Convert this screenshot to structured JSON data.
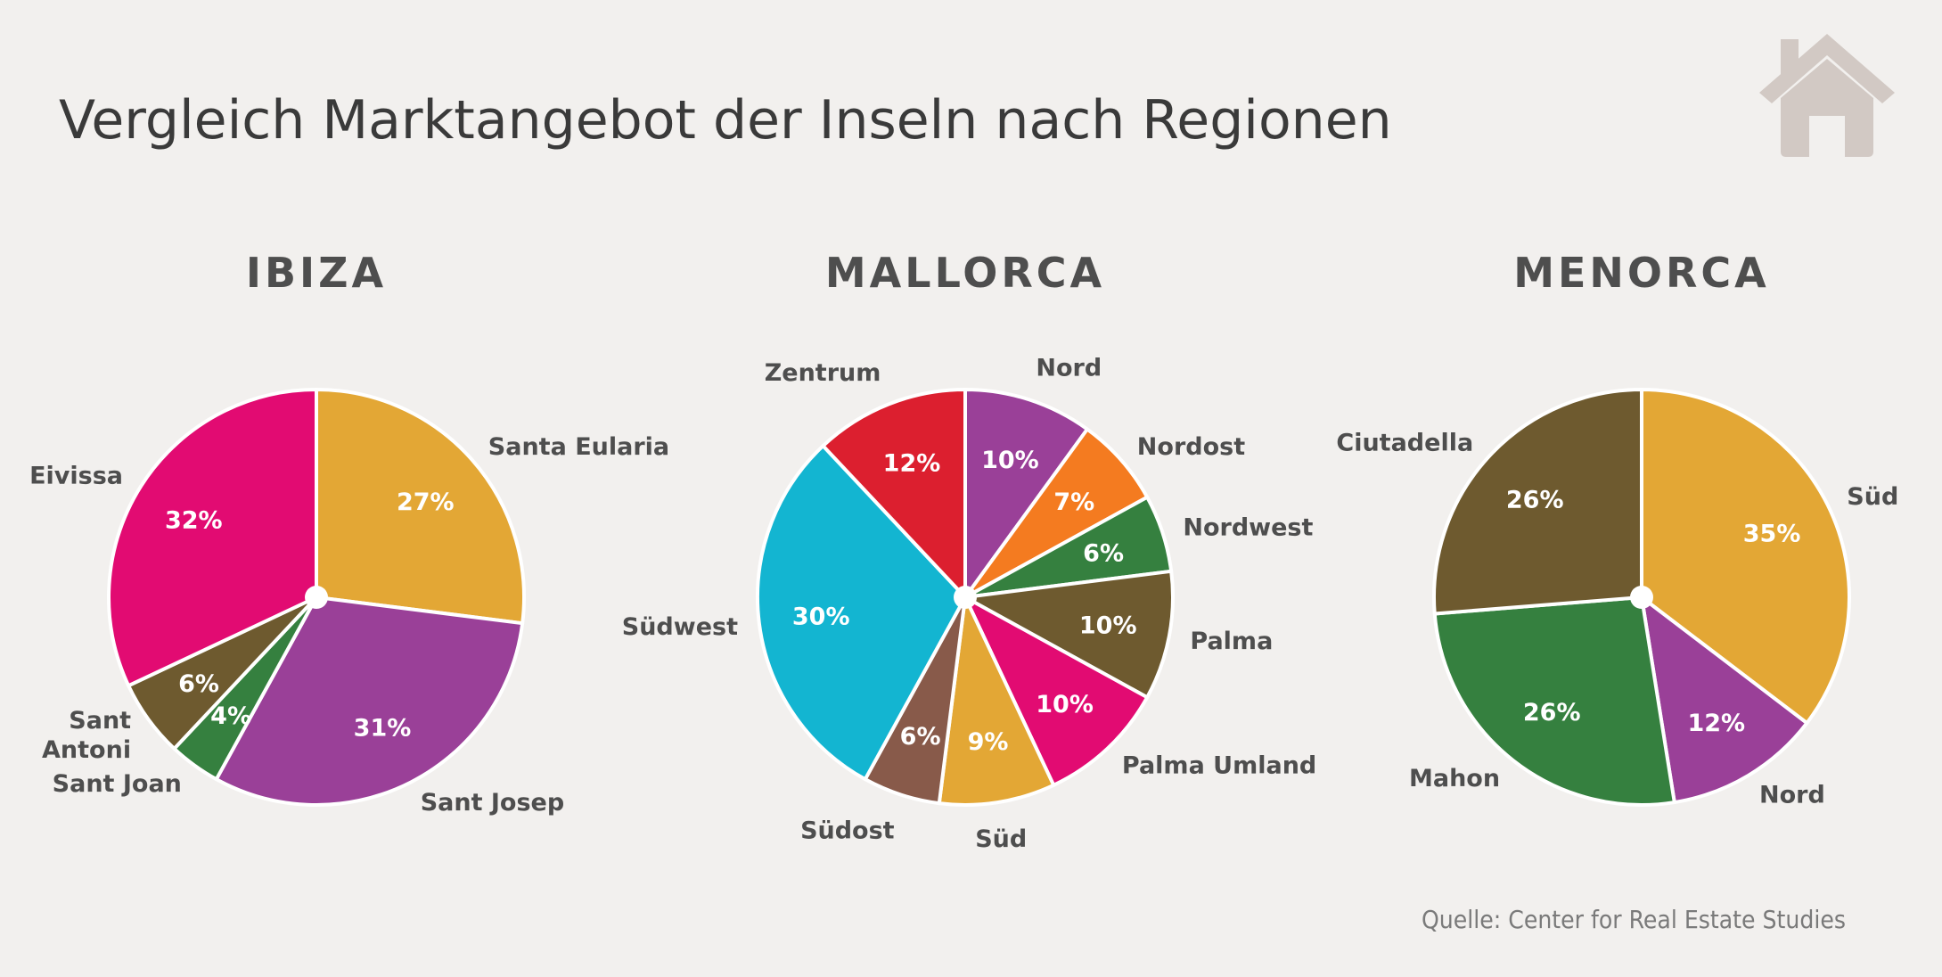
{
  "page": {
    "title": "Vergleich Marktangebot der Inseln nach Regionen",
    "source": "Quelle: Center for Real Estate Studies",
    "icon": "house-icon"
  },
  "chart_data": [
    {
      "type": "pie",
      "title": "IBIZA",
      "categories": [
        "Santa Eularia",
        "Sant Josep",
        "Sant Joan",
        "Sant Antoni",
        "Eivissa"
      ],
      "values": [
        27,
        31,
        4,
        6,
        32
      ],
      "value_labels": [
        "27%",
        "31%",
        "4%",
        "6%",
        "32%"
      ],
      "colors": [
        "#e3a735",
        "#9a4098",
        "#35803f",
        "#6e5a2f",
        "#e20b72"
      ]
    },
    {
      "type": "pie",
      "title": "MALLORCA",
      "categories": [
        "Nord",
        "Nordost",
        "Nordwest",
        "Palma",
        "Palma Umland",
        "Süd",
        "Südost",
        "Südwest",
        "Zentrum"
      ],
      "values": [
        10,
        7,
        6,
        10,
        10,
        9,
        6,
        30,
        12
      ],
      "value_labels": [
        "10%",
        "7%",
        "6%",
        "10%",
        "10%",
        "9%",
        "6%",
        "30%",
        "12%"
      ],
      "colors": [
        "#9a4098",
        "#f47b20",
        "#35803f",
        "#6e5a2f",
        "#e20b72",
        "#e3a735",
        "#885a4a",
        "#13b5d1",
        "#dc1f2f"
      ]
    },
    {
      "type": "pie",
      "title": "MENORCA",
      "categories": [
        "Süd",
        "Nord",
        "Mahon",
        "Ciutadella"
      ],
      "values": [
        35,
        12,
        26,
        26
      ],
      "value_labels": [
        "35%",
        "12%",
        "26%",
        "26%"
      ],
      "colors": [
        "#e3a735",
        "#9a4098",
        "#35803f",
        "#6e5a2f"
      ]
    }
  ]
}
